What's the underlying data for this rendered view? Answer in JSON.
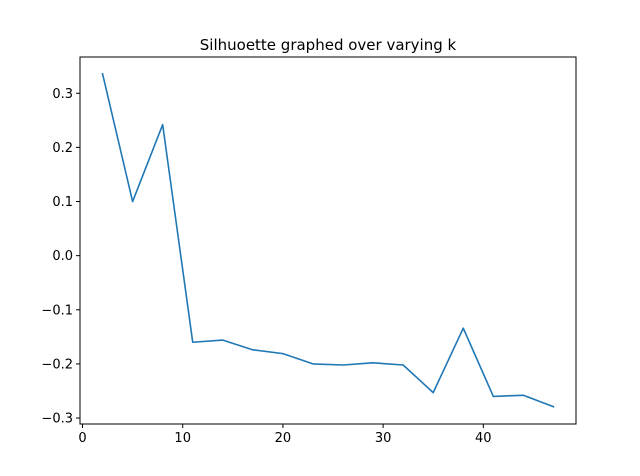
{
  "chart_data": {
    "type": "line",
    "title": "Silhuoette graphed over varying k",
    "xlabel": "",
    "ylabel": "",
    "xlim": [
      -0.25,
      49.25
    ],
    "ylim": [
      -0.311,
      0.367
    ],
    "grid": false,
    "x_ticks": [
      0,
      10,
      20,
      30,
      40
    ],
    "x_tick_labels": [
      "0",
      "10",
      "20",
      "30",
      "40"
    ],
    "y_ticks": [
      -0.3,
      -0.2,
      -0.1,
      0.0,
      0.1,
      0.2,
      0.3
    ],
    "y_tick_labels": [
      "−0.3",
      "−0.2",
      "−0.1",
      "0.0",
      "0.1",
      "0.2",
      "0.3"
    ],
    "series": [
      {
        "name": "silhouette",
        "color": "#1f77b4",
        "x": [
          2,
          5,
          8,
          11,
          14,
          17,
          20,
          23,
          26,
          29,
          32,
          35,
          38,
          41,
          44,
          47
        ],
        "y": [
          0.336,
          0.1,
          0.242,
          -0.16,
          -0.156,
          -0.174,
          -0.181,
          -0.2,
          -0.202,
          -0.198,
          -0.202,
          -0.253,
          -0.134,
          -0.26,
          -0.258,
          -0.279
        ]
      }
    ]
  }
}
